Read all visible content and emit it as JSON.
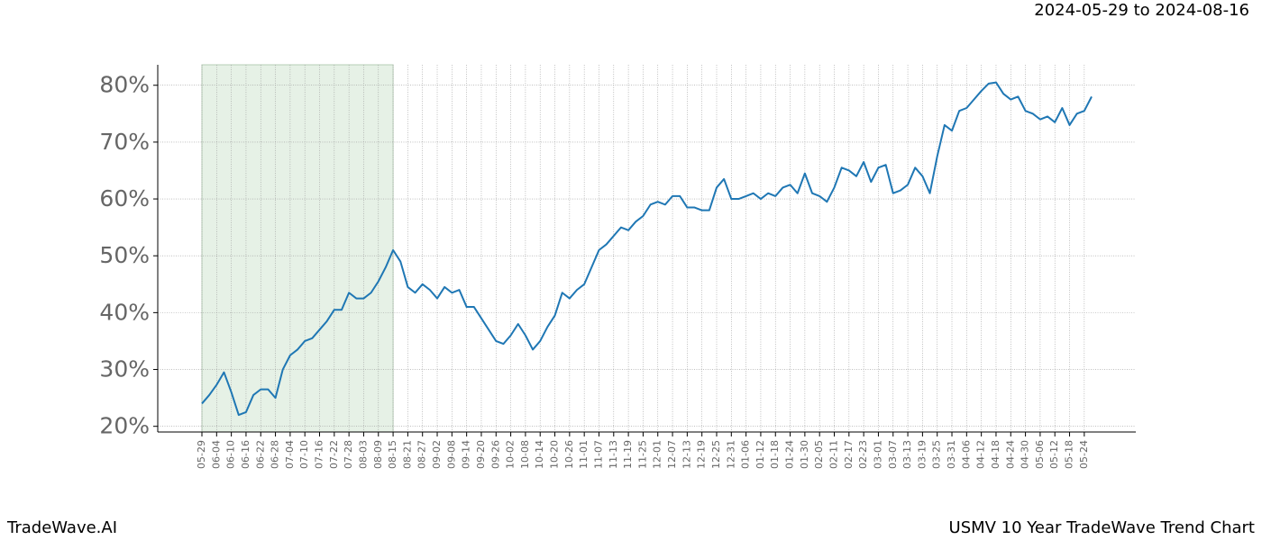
{
  "header": {
    "date_range": "2024-05-29 to 2024-08-16"
  },
  "footer": {
    "brand": "TradeWave.AI",
    "chart_title": "USMV 10 Year TradeWave Trend Chart"
  },
  "chart_data": {
    "type": "line",
    "categories": [
      "05-29",
      null,
      "06-04",
      null,
      "06-10",
      null,
      "06-16",
      null,
      "06-22",
      null,
      "06-28",
      null,
      "07-04",
      null,
      "07-10",
      null,
      "07-16",
      null,
      "07-22",
      null,
      "07-28",
      null,
      "08-03",
      null,
      "08-09",
      null,
      "08-15",
      null,
      "08-21",
      null,
      "08-27",
      null,
      "09-02",
      null,
      "09-08",
      null,
      "09-14",
      null,
      "09-20",
      null,
      "09-26",
      null,
      "10-02",
      null,
      "10-08",
      null,
      "10-14",
      null,
      "10-20",
      null,
      "10-26",
      null,
      "11-01",
      null,
      "11-07",
      null,
      "11-13",
      null,
      "11-19",
      null,
      "11-25",
      null,
      "12-01",
      null,
      "12-07",
      null,
      "12-13",
      null,
      "12-19",
      null,
      "12-25",
      null,
      "12-31",
      null,
      "01-06",
      null,
      "01-12",
      null,
      "01-18",
      null,
      "01-24",
      null,
      "01-30",
      null,
      "02-05",
      null,
      "02-11",
      null,
      "02-17",
      null,
      "02-23",
      null,
      "03-01",
      null,
      "03-07",
      null,
      "03-13",
      null,
      "03-19",
      null,
      "03-25",
      null,
      "03-31",
      null,
      "04-06",
      null,
      "04-12",
      null,
      "04-18",
      null,
      "04-24",
      null,
      "04-30",
      null,
      "05-06",
      null,
      "05-12",
      null,
      "05-18",
      null,
      "05-24",
      null
    ],
    "values": [
      24,
      25.5,
      27.3,
      29.5,
      26,
      22,
      22.5,
      25.5,
      26.5,
      26.5,
      25,
      30,
      32.5,
      33.5,
      35,
      35.5,
      37,
      38.5,
      40.5,
      40.5,
      43.5,
      42.5,
      42.5,
      43.5,
      45.5,
      48,
      51,
      49,
      44.5,
      43.5,
      45,
      44,
      42.5,
      44.5,
      43.5,
      44,
      41,
      41,
      39,
      37,
      35,
      34.5,
      36,
      38,
      36,
      33.5,
      35,
      37.5,
      39.5,
      43.5,
      42.5,
      44,
      45,
      48,
      51,
      52,
      53.5,
      55,
      54.5,
      56,
      57,
      59,
      59.5,
      59,
      60.5,
      60.5,
      58.5,
      58.5,
      58,
      58,
      62,
      63.5,
      60,
      60,
      60.5,
      61,
      60,
      61,
      60.5,
      62,
      62.5,
      61,
      64.5,
      61,
      60.5,
      59.5,
      62,
      65.5,
      65,
      64,
      66.5,
      63,
      65.5,
      66,
      61,
      61.5,
      62.5,
      65.5,
      64,
      61,
      67.5,
      73,
      72,
      75.5,
      76,
      77.5,
      79,
      80.3,
      80.5,
      78.5,
      77.5,
      78,
      75.5,
      75,
      74,
      74.5,
      73.5,
      76,
      73,
      75,
      75.5,
      78
    ],
    "color": "#1f77b4",
    "highlight_categories": [
      0,
      26
    ],
    "highlight_color": "#e6f1e6",
    "ylim": [
      19,
      83.6
    ],
    "yticks": [
      {
        "value": 20,
        "label": "20%"
      },
      {
        "value": 30,
        "label": "30%"
      },
      {
        "value": 40,
        "label": "40%"
      },
      {
        "value": 50,
        "label": "50%"
      },
      {
        "value": 60,
        "label": "60%"
      },
      {
        "value": 70,
        "label": "70%"
      },
      {
        "value": 80,
        "label": "80%"
      }
    ],
    "grid": true
  }
}
